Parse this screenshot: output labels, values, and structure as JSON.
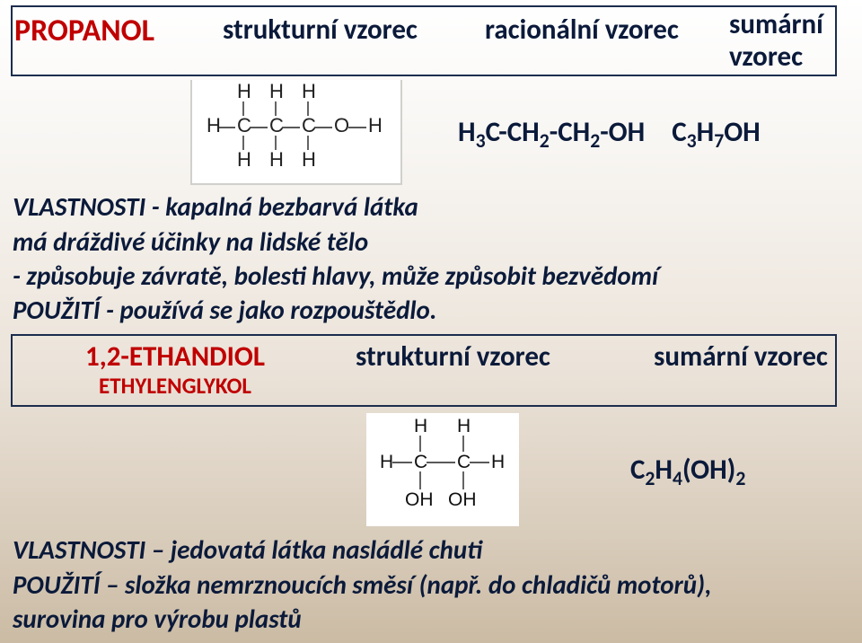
{
  "colors": {
    "red": "#c00000",
    "navy": "#0b1a3a",
    "border": "#1b2d4e",
    "bg_top_from": "#ffffff",
    "bg_top_to": "#ece4da",
    "bg_bot_from": "#ece4db",
    "bg_bot_to": "#cbbba4"
  },
  "row1": {
    "propanol": "PROPANOL",
    "strukturni": "strukturní vzorec",
    "racionalni": "racionální vzorec",
    "sumarni_line1": "sumární",
    "sumarni_line2": "vzorec"
  },
  "formulas": {
    "rational_html": "H<sub>3</sub>C-CH<sub>2</sub>-CH<sub>2</sub>-OH",
    "sum_html": "C<sub>3</sub>H<sub>7</sub>OH",
    "ethandiol_sum_html": "C<sub>2</sub>H<sub>4</sub>(OH)<sub>2</sub>"
  },
  "propanol_text": {
    "l1": "VLASTNOSTI - kapalná bezbarvá látka",
    "l2": "má dráždivé účinky na lidské tělo",
    "l3": "- způsobuje závratě, bolesti hlavy, může způsobit bezvědomí",
    "l4": "POUŽITÍ - používá se jako rozpouštědlo."
  },
  "row3": {
    "title": "1,2-ETHANDIOL",
    "subtitle": "ETHYLENGLYKOL",
    "strukturni": "strukturní vzorec",
    "sumarni": "sumární vzorec"
  },
  "ethandiol_text": {
    "l1": "VLASTNOSTI – jedovatá látka nasládlé chuti",
    "l2": "POUŽITÍ – složka nemrznoucích směsí (např. do chladičů motorů),",
    "l3": "surovina pro výrobu plastů"
  },
  "struct_propanol": {
    "atoms": [
      "H",
      "H",
      "H",
      "C",
      "C",
      "C",
      "O",
      "H",
      "H",
      "H",
      "H",
      "H"
    ]
  },
  "struct_ethandiol": {
    "atoms": [
      "H",
      "H",
      "C",
      "C",
      "H",
      "H",
      "OH",
      "OH"
    ]
  }
}
